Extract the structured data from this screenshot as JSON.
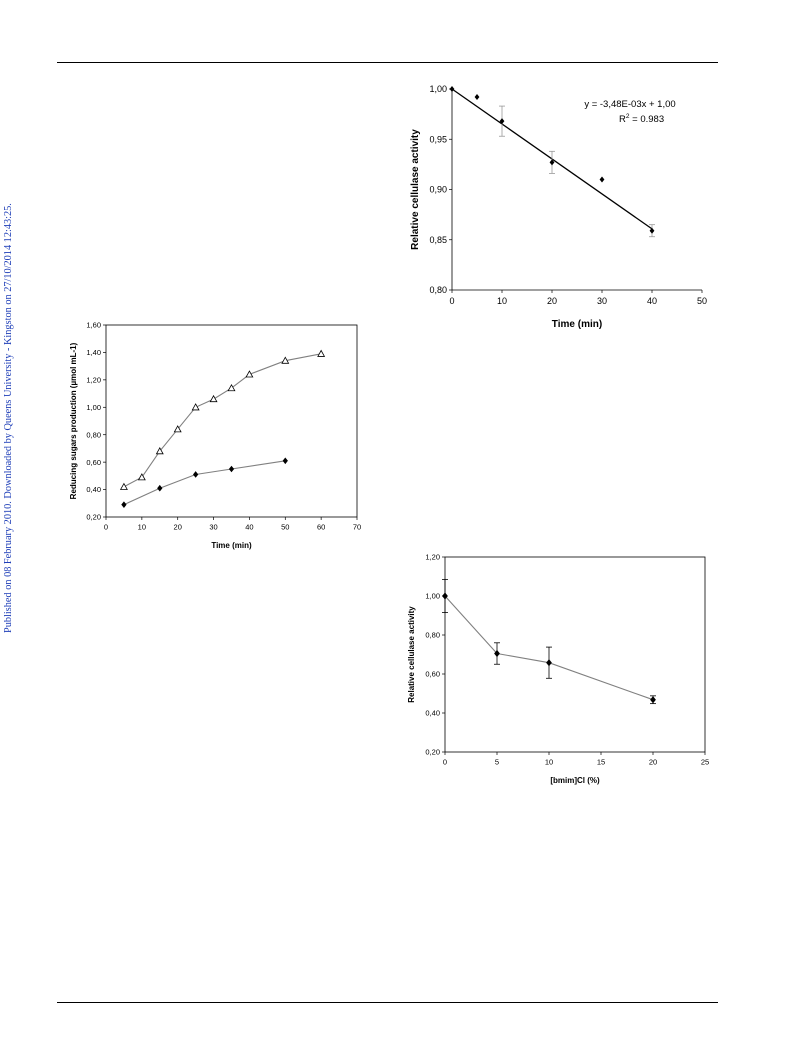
{
  "page": {
    "side_note": "Published on 08 February 2010. Downloaded by Queens University - Kingston on 27/10/2014 12:43:25."
  },
  "chart_data": [
    {
      "id": "top-right",
      "type": "scatter",
      "xlabel": "Time (min)",
      "ylabel": "Relative cellulase activity",
      "xlim": [
        0,
        50
      ],
      "ylim": [
        0.8,
        1.0
      ],
      "xticks": [
        "0",
        "10",
        "20",
        "30",
        "40",
        "50"
      ],
      "yticks": [
        "0,80",
        "0,85",
        "0,90",
        "0,95",
        "1,00"
      ],
      "grid": false,
      "series": [
        {
          "marker": "diamond",
          "x": [
            0,
            5,
            10,
            20,
            30,
            40
          ],
          "y": [
            1.0,
            0.992,
            0.968,
            0.927,
            0.91,
            0.859
          ],
          "err": [
            0,
            0,
            0.015,
            0.011,
            0,
            0.006
          ]
        }
      ],
      "trendline": {
        "x": [
          0,
          40
        ],
        "y": [
          1.0,
          0.8608
        ]
      },
      "annotation": {
        "equation": "y = -3,48E-03x + 1,00",
        "r2_prefix": "R",
        "r2_sup": "2",
        "r2_value": " = 0.983"
      },
      "colors": {
        "line": "#000000",
        "marker": "#000000"
      }
    },
    {
      "id": "middle-left",
      "type": "line",
      "xlabel": "Time (min)",
      "ylabel": "Reducing sugars production (µmol mL-1)",
      "xlim": [
        0,
        70
      ],
      "ylim": [
        0.2,
        1.6
      ],
      "xticks": [
        "0",
        "10",
        "20",
        "30",
        "40",
        "50",
        "60",
        "70"
      ],
      "yticks": [
        "0,20",
        "0,40",
        "0,60",
        "0,80",
        "1,00",
        "1,20",
        "1,40",
        "1,60"
      ],
      "grid": false,
      "series": [
        {
          "marker": "triangle-open",
          "x": [
            5,
            10,
            15,
            20,
            25,
            30,
            35,
            40,
            50,
            60
          ],
          "y": [
            0.42,
            0.49,
            0.68,
            0.84,
            1.0,
            1.06,
            1.14,
            1.24,
            1.34,
            1.39
          ]
        },
        {
          "marker": "diamond",
          "x": [
            5,
            15,
            25,
            35,
            50
          ],
          "y": [
            0.29,
            0.41,
            0.51,
            0.55,
            0.61
          ]
        }
      ],
      "colors": {
        "line": "#808080",
        "marker": "#000000"
      }
    },
    {
      "id": "bottom-right",
      "type": "line",
      "xlabel": "[bmim]Cl (%)",
      "ylabel": "Relative cellulase activity",
      "xlim": [
        0,
        25
      ],
      "ylim": [
        0.2,
        1.2
      ],
      "xticks": [
        "0",
        "5",
        "10",
        "15",
        "20",
        "25"
      ],
      "yticks": [
        "0,20",
        "0,40",
        "0,60",
        "0,80",
        "1,00",
        "1,20"
      ],
      "grid": false,
      "series": [
        {
          "marker": "diamond",
          "x": [
            0,
            5,
            10,
            20
          ],
          "y": [
            1.0,
            0.705,
            0.658,
            0.468
          ],
          "err": [
            0.085,
            0.055,
            0.08,
            0.02
          ]
        }
      ],
      "colors": {
        "line": "#808080",
        "marker": "#000000"
      }
    }
  ]
}
